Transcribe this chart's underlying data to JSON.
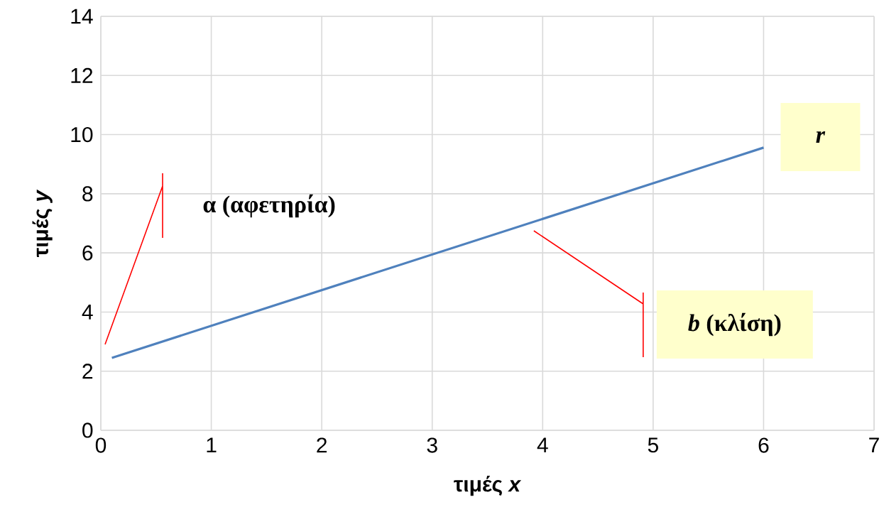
{
  "chart_data": {
    "type": "line",
    "xlabel": "τιμές *x*",
    "ylabel": "τιμές *y*",
    "x": [
      0.1,
      6
    ],
    "series": [
      {
        "color": "#4f81bd",
        "values": [
          2.45,
          9.56
        ]
      }
    ],
    "xlim": [
      0,
      7
    ],
    "ylim": [
      0,
      14
    ],
    "xticks": [
      0,
      1,
      2,
      3,
      4,
      5,
      6,
      7
    ],
    "yticks": [
      0,
      2,
      4,
      6,
      8,
      10,
      12,
      14
    ],
    "grid": true,
    "marker": "none",
    "line_style": "solid",
    "annotations": [
      "α (αφετηρία)",
      "*b* (κλίση)",
      {
        "text": "*r*",
        "x": 6,
        "y": 9.56
      }
    ]
  }
}
